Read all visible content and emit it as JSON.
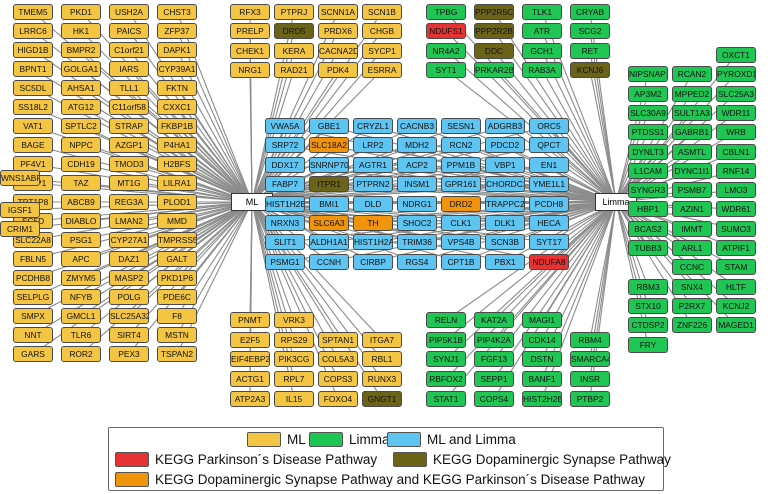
{
  "hubs": {
    "ml": "ML",
    "limma": "Limma"
  },
  "colors": {
    "ml": "#f4c542",
    "limma": "#1fc654",
    "both": "#5ec4f2",
    "parkinson": "#e63232",
    "dopaminergic": "#6b6418",
    "both_pathways": "#f2930c",
    "edge": "#8c8c8c"
  },
  "groups": [
    {
      "hub": "ml",
      "nodes": [
        [
          "TMEM5",
          "PKD1",
          "USH2A",
          "CHST3"
        ],
        [
          "LRRC6",
          "HK1",
          "PAICS",
          "ZFP37"
        ],
        [
          "HIGD1B",
          "BMPR2",
          "C1orf21",
          "DAPK1"
        ],
        [
          "BPNT1",
          "GOLGA1",
          "IARS",
          "CYP39A1"
        ],
        [
          "SC5DL",
          "AHSA1",
          "TLL1",
          "FKTN"
        ],
        [
          "SS18L2",
          "ATG12",
          "C11orf58",
          "CXXC1"
        ],
        [
          "VAT1",
          "SPTLC2",
          "STRAP",
          "FKBP1B"
        ],
        [
          "BAGE",
          "NPPC",
          "AZGP1",
          "P4HA1"
        ],
        [
          "PF4V1",
          "CDH19",
          "TMOD3",
          "H2BFS"
        ],
        [
          "RLBP1",
          "TAZ",
          "MT1G",
          "LILRA1"
        ],
        [
          "TPT1P8",
          "ABCB9",
          "REG3A",
          "PLOD1"
        ],
        [
          "SC5D",
          "DIABLO",
          "LMAN2",
          "MMD"
        ],
        [
          "SLC22A8",
          "PSG1",
          "CYP27A1",
          "TMPRSS5"
        ],
        [
          "FBLN5",
          "APC",
          "DAZ1",
          "GALT"
        ],
        [
          "PCDHB8",
          "ZMYM5",
          "MASP2",
          "PKD1P6"
        ],
        [
          "SELPLG",
          "NFYB",
          "POLG",
          "PDE6C"
        ],
        [
          "SMPX",
          "GMCL1",
          "SLC25A32",
          "F8"
        ],
        [
          "NNT",
          "TLR6",
          "SIRT4",
          "MSTN"
        ],
        [
          "GARS",
          "ROR2",
          "PEX3",
          "TSPAN2"
        ]
      ],
      "extra": [
        "WNS1ABP",
        "IGSF1",
        "CRIM1"
      ]
    },
    {
      "hub": "ml",
      "nodes": [
        [
          "RFX3",
          "PTPRJ",
          "SCNN1A",
          "SCN1B"
        ],
        [
          "PRELP",
          "DRD5",
          "PRDX6",
          "CHGB"
        ],
        [
          "CHEK1",
          "KERA",
          "CACNA2D2",
          "SYCP1"
        ],
        [
          "NRG1",
          "RAD21",
          "PDK4",
          "ESRRA"
        ]
      ]
    },
    {
      "hub": "limma",
      "nodes": [
        [
          "TPBG",
          "PPP2R5C",
          "TLK1",
          "CRYAB"
        ],
        [
          "NDUFS1",
          "PPP2R2B",
          "ATR",
          "SCG2"
        ],
        [
          "NR4A2",
          "DDC",
          "GCH1",
          "RET"
        ],
        [
          "SYT1",
          "PRKAR2B",
          "RAB3A",
          "KCNJ6"
        ]
      ]
    },
    {
      "hub": "both",
      "nodes": [
        [
          "VWA5A",
          "GBE1",
          "CRYZL1",
          "CACNB3",
          "SESN1",
          "ADGRB3",
          "ORC5"
        ],
        [
          "SRP72",
          "SLC18A2",
          "LRP2",
          "MDH2",
          "RCN2",
          "PDCD2",
          "QPCT"
        ],
        [
          "DDX17",
          "SNRNP70",
          "AGTR1",
          "ACP2",
          "PPM1B",
          "VBP1",
          "EN1"
        ],
        [
          "FABP7",
          "ITPR1",
          "PTPRN2",
          "INSM1",
          "GPR161",
          "CHORDC1",
          "YME1L1"
        ],
        [
          "HIST1H2BD",
          "BMI1",
          "DLD",
          "NDRG1",
          "DRD2",
          "TRAPPC2L",
          "PCDH8"
        ],
        [
          "NRXN3",
          "SLC6A3",
          "TH",
          "SHOC2",
          "CLK1",
          "DLK1",
          "HECA"
        ],
        [
          "SLIT1",
          "ALDH1A1",
          "HIST1H2AC",
          "TRIM36",
          "VPS4B",
          "SCN3B",
          "SYT17"
        ],
        [
          "PSMG1",
          "CCNH",
          "CIRBP",
          "RGS4",
          "CPT1B",
          "PBX1",
          "NDUFA8"
        ]
      ]
    },
    {
      "hub": "limma",
      "nodes": [
        [
          "OXCT1"
        ],
        [
          "NIPSNAP1",
          "RCAN2",
          "PYROXD1"
        ],
        [
          "AP3M2",
          "MPPED2",
          "SLC25A3"
        ],
        [
          "SLC30A9",
          "SULT1A3",
          "WDR11"
        ],
        [
          "PTDSS1",
          "GABRB1",
          "WRB"
        ],
        [
          "DYNLT3",
          "ASMTL",
          "CBLN1"
        ],
        [
          "L1CAM",
          "DYNC1I1",
          "RNF14"
        ],
        [
          "SYNGR3",
          "PSMB7",
          "LMO3"
        ],
        [
          "HBP1",
          "AZIN1",
          "WDR61"
        ],
        [
          "BCAS2",
          "IMMT",
          "SUMO3"
        ],
        [
          "TUBB3",
          "ARL1",
          "ATPIF1"
        ],
        [
          "CCNC",
          "STAM"
        ],
        [
          "RBM3",
          "SNX4",
          "HLTF"
        ],
        [
          "STX10",
          "P2RX7",
          "KCNJ2"
        ],
        [
          "CTDSP2",
          "ZNF226",
          "MAGED1"
        ],
        [
          "FRY"
        ]
      ]
    },
    {
      "hub": "ml",
      "nodes": [
        [
          "PNMT",
          "VRK3"
        ],
        [
          "E2F5",
          "RPS29",
          "SPTAN1",
          "ITGA7"
        ],
        [
          "EIF4EBP2",
          "PIK3CG",
          "COL5A3",
          "RBL1"
        ],
        [
          "ACTG1",
          "RPL7",
          "COPS3",
          "RUNX3"
        ],
        [
          "ATP2A3",
          "IL15",
          "FOXO4",
          "GNGT1"
        ]
      ]
    },
    {
      "hub": "limma",
      "nodes": [
        [
          "RELN",
          "KAT2A",
          "MAGI1"
        ],
        [
          "PIP5K1B",
          "PIP4K2A",
          "CDK14",
          "RBM4"
        ],
        [
          "SYNJ1",
          "FGF13",
          "DSTN",
          "SMARCA4"
        ],
        [
          "RBFOX2",
          "SEPP1",
          "BANF1",
          "INSR"
        ],
        [
          "STAT1",
          "COPS4",
          "HIST2H2BE",
          "PTBP2"
        ]
      ]
    }
  ],
  "highlights": {
    "parkinson": [
      "NDUFS1",
      "NDUFA8"
    ],
    "dopaminergic": [
      "DRD5",
      "PPP2R5C",
      "PPP2R2B",
      "DDC",
      "KCNJ6",
      "ITPR1",
      "GNGT1"
    ],
    "both_pathways": [
      "SLC18A2",
      "DRD2",
      "SLC6A3",
      "TH"
    ]
  },
  "legend": {
    "ml": "ML",
    "limma": "Limma",
    "both": "ML and Limma",
    "parkinson": "KEGG Parkinson´s Disease Pathway",
    "dopaminergic": "KEGG Dopaminergic Synapse Pathway",
    "both_pathways": "KEGG Dopaminergic Synapse Pathway and KEGG Parkinson´s Disease Pathway"
  }
}
